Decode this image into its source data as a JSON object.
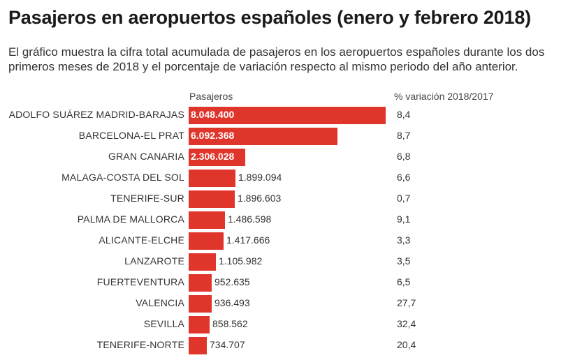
{
  "header": {
    "title": "Pasajeros en aeropuertos españoles (enero y febrero 2018)",
    "subtitle": "El gráfico muestra la cifra total acumulada de pasajeros en los aeropuertos españoles durante los dos primeros meses de 2018 y el porcentaje de variación respecto al mismo periodo del año anterior."
  },
  "columns": {
    "passengers_label": "Pasajeros",
    "variation_label": "% variación 2018/2017"
  },
  "colors": {
    "bar": "#e0352b"
  },
  "chart_data": {
    "type": "bar",
    "orientation": "horizontal",
    "title": "Pasajeros en aeropuertos españoles (enero y febrero 2018)",
    "xmax": 8048400,
    "categories": [
      "ADOLFO SUÁREZ MADRID-BARAJAS",
      "BARCELONA-EL PRAT",
      "GRAN CANARIA",
      "MALAGA-COSTA DEL SOL",
      "TENERIFE-SUR",
      "PALMA DE MALLORCA",
      "ALICANTE-ELCHE",
      "LANZAROTE",
      "FUERTEVENTURA",
      "VALENCIA",
      "SEVILLA",
      "TENERIFE-NORTE"
    ],
    "values": [
      8048400,
      6092368,
      2306028,
      1899094,
      1896603,
      1486598,
      1417666,
      1105982,
      952635,
      936493,
      858562,
      734707
    ],
    "value_labels": [
      "8.048.400",
      "6.092.368",
      "2.306.028",
      "1.899.094",
      "1.896.603",
      "1.486.598",
      "1.417.666",
      "1.105.982",
      "952.635",
      "936.493",
      "858.562",
      "734.707"
    ],
    "variation": [
      "8,4",
      "8,7",
      "6,8",
      "6,6",
      "0,7",
      "9,1",
      "3,3",
      "3,5",
      "6,5",
      "27,7",
      "32,4",
      "20,4"
    ]
  }
}
